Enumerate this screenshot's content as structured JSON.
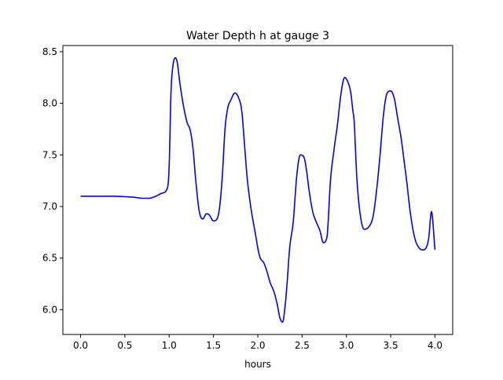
{
  "chart_data": {
    "type": "line",
    "title": "Water Depth h at gauge 3",
    "xlabel": "hours",
    "ylabel": "",
    "xlim": [
      -0.2,
      4.2
    ],
    "ylim": [
      5.76,
      8.56
    ],
    "xticks": [
      0.0,
      0.5,
      1.0,
      1.5,
      2.0,
      2.5,
      3.0,
      3.5,
      4.0
    ],
    "xtick_labels": [
      "0.0",
      "0.5",
      "1.0",
      "1.5",
      "2.0",
      "2.5",
      "3.0",
      "3.5",
      "4.0"
    ],
    "yticks": [
      6.0,
      6.5,
      7.0,
      7.5,
      8.0,
      8.5
    ],
    "ytick_labels": [
      "6.0",
      "6.5",
      "7.0",
      "7.5",
      "8.0",
      "8.5"
    ],
    "grid": false,
    "legend": "none",
    "series": [
      {
        "color": "#0000ff",
        "x": [
          0.0,
          0.3,
          0.6,
          0.7,
          0.77,
          0.85,
          0.92,
          0.98,
          1.0,
          1.02,
          1.04,
          1.07,
          1.09,
          1.12,
          1.16,
          1.2,
          1.24,
          1.27,
          1.3,
          1.34,
          1.38,
          1.42,
          1.45,
          1.5,
          1.54,
          1.57,
          1.6,
          1.63,
          1.66,
          1.7,
          1.74,
          1.78,
          1.82,
          1.85,
          1.88,
          1.92,
          1.97,
          2.02,
          2.07,
          2.1,
          2.14,
          2.18,
          2.22,
          2.25,
          2.28,
          2.31,
          2.33,
          2.36,
          2.4,
          2.44,
          2.48,
          2.52,
          2.55,
          2.58,
          2.62,
          2.66,
          2.7,
          2.74,
          2.78,
          2.82,
          2.86,
          2.9,
          2.94,
          2.98,
          3.02,
          3.05,
          3.07,
          3.09,
          3.1,
          3.12,
          3.16,
          3.2,
          3.25,
          3.3,
          3.34,
          3.38,
          3.42,
          3.46,
          3.5,
          3.54,
          3.58,
          3.62,
          3.65,
          3.68,
          3.72,
          3.77,
          3.82,
          3.86,
          3.9,
          3.93,
          3.96,
          4.0
        ],
        "y": [
          7.1,
          7.1,
          7.09,
          7.08,
          7.08,
          7.1,
          7.13,
          7.18,
          7.4,
          8.1,
          8.35,
          8.44,
          8.4,
          8.2,
          7.98,
          7.82,
          7.73,
          7.55,
          7.25,
          6.95,
          6.88,
          6.93,
          6.92,
          6.86,
          6.88,
          7.0,
          7.3,
          7.75,
          7.95,
          8.04,
          8.1,
          8.06,
          7.92,
          7.6,
          7.28,
          7.0,
          6.75,
          6.52,
          6.45,
          6.38,
          6.26,
          6.18,
          6.05,
          5.92,
          5.88,
          6.05,
          6.25,
          6.6,
          6.85,
          7.3,
          7.5,
          7.48,
          7.35,
          7.15,
          6.95,
          6.85,
          6.77,
          6.65,
          6.7,
          7.25,
          7.55,
          7.8,
          8.1,
          8.25,
          8.2,
          8.1,
          7.95,
          7.8,
          7.6,
          7.25,
          6.9,
          6.78,
          6.8,
          6.9,
          7.15,
          7.5,
          7.9,
          8.1,
          8.12,
          8.05,
          7.85,
          7.65,
          7.45,
          7.25,
          6.95,
          6.7,
          6.6,
          6.58,
          6.6,
          6.7,
          6.95,
          6.58
        ]
      }
    ]
  }
}
